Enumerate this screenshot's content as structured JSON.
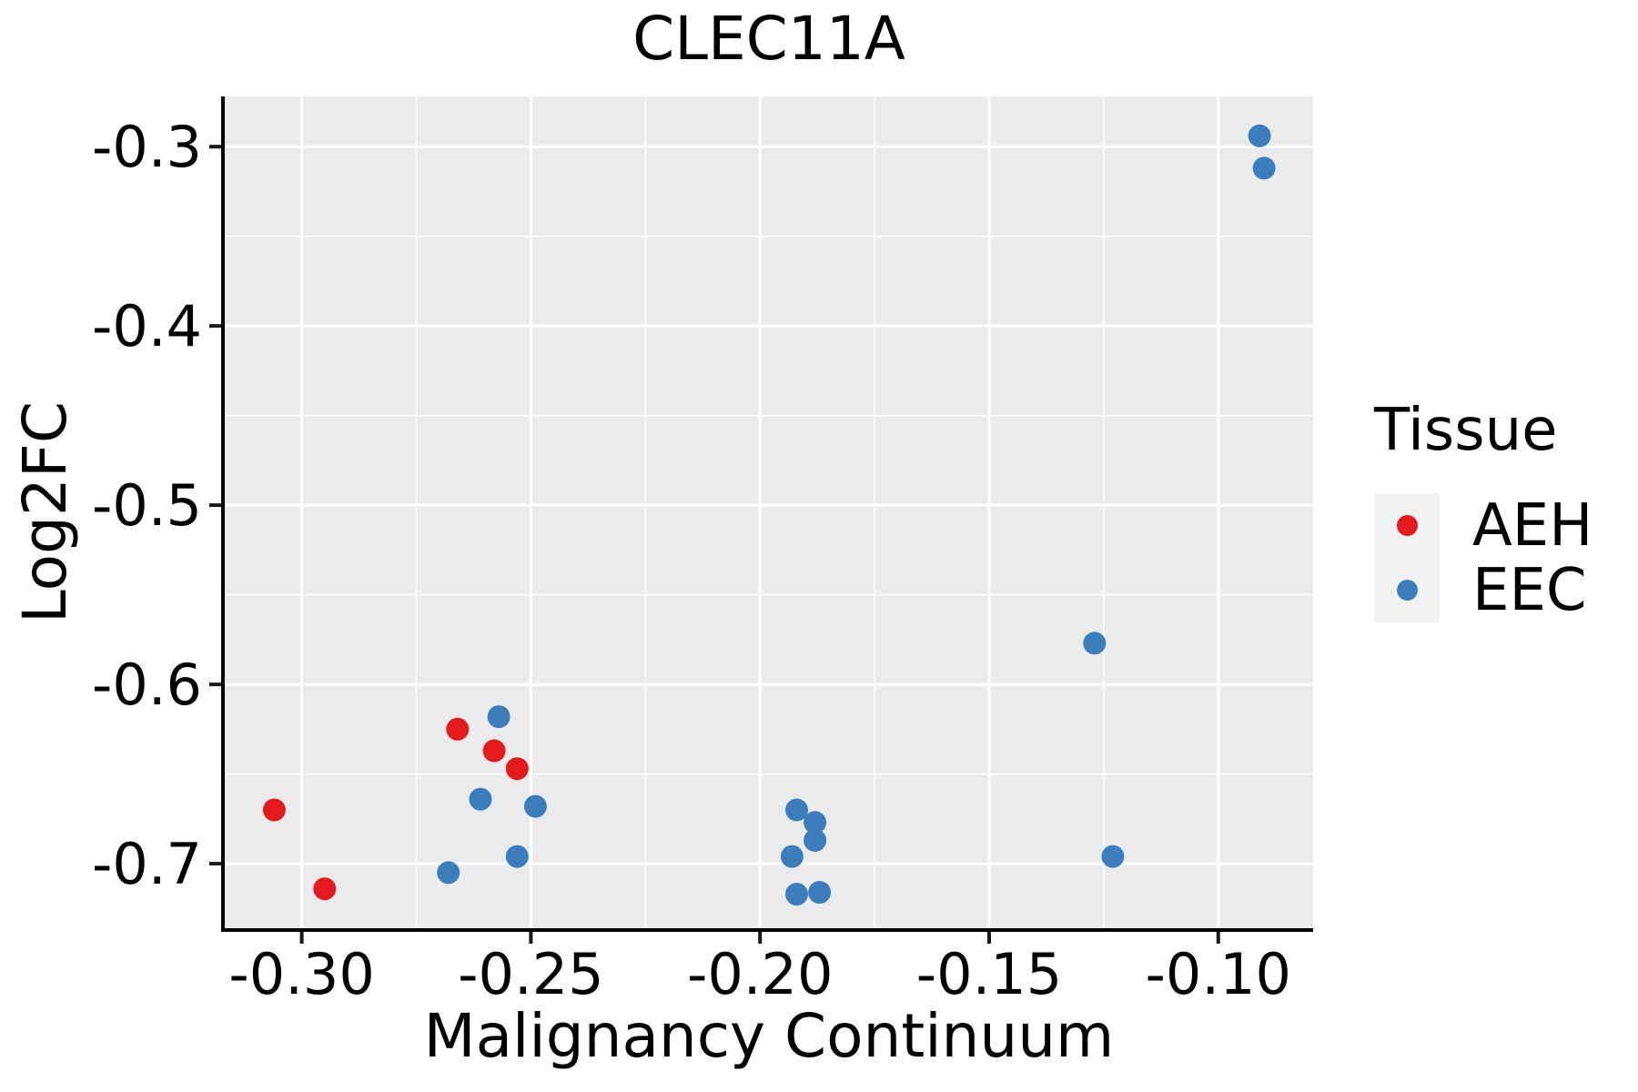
{
  "title": "CLEC11A",
  "x_axis": {
    "label": "Malignancy Continuum",
    "tick_labels": [
      "-0.30",
      "-0.25",
      "-0.20",
      "-0.15",
      "-0.10"
    ],
    "tick_values": [
      -0.3,
      -0.25,
      -0.2,
      -0.15,
      -0.1
    ]
  },
  "y_axis": {
    "label": "Log2FC",
    "tick_labels": [
      "-0.3",
      "-0.4",
      "-0.5",
      "-0.6",
      "-0.7"
    ],
    "tick_values": [
      -0.3,
      -0.4,
      -0.5,
      -0.6,
      -0.7
    ]
  },
  "legend": {
    "title": "Tissue",
    "items": [
      {
        "label": "AEH",
        "color": "#E41A1C"
      },
      {
        "label": "EEC",
        "color": "#3B7EBB"
      }
    ]
  },
  "style": {
    "panel_background": "#EBEBEB",
    "gridline_color": "#FFFFFF",
    "spine_color": "#000000",
    "tick_color": "#1a1a1a",
    "legend_key_background": "#F2F2F2",
    "text_color": "#000000"
  },
  "chart_data": {
    "type": "scatter",
    "title": "CLEC11A",
    "xlabel": "Malignancy Continuum",
    "ylabel": "Log2FC",
    "xlim": [
      -0.3168,
      -0.0793
    ],
    "ylim": [
      -0.736,
      -0.272
    ],
    "grid": true,
    "legend_position": "right",
    "legend_title": "Tissue",
    "x_major_gridlines": [
      -0.3,
      -0.25,
      -0.2,
      -0.15,
      -0.1
    ],
    "x_minor_gridlines": [
      -0.275,
      -0.225,
      -0.175,
      -0.125
    ],
    "y_major_gridlines": [
      -0.3,
      -0.4,
      -0.5,
      -0.6,
      -0.7
    ],
    "y_minor_gridlines": [
      -0.35,
      -0.45,
      -0.55,
      -0.65
    ],
    "marker_radius_px": 12.5,
    "series": [
      {
        "name": "AEH",
        "color": "#E41A1C",
        "points": [
          [
            -0.306,
            -0.67
          ],
          [
            -0.295,
            -0.714
          ],
          [
            -0.266,
            -0.625
          ],
          [
            -0.258,
            -0.637
          ],
          [
            -0.253,
            -0.647
          ]
        ]
      },
      {
        "name": "EEC",
        "color": "#3B7EBB",
        "points": [
          [
            -0.257,
            -0.618
          ],
          [
            -0.261,
            -0.664
          ],
          [
            -0.249,
            -0.668
          ],
          [
            -0.268,
            -0.705
          ],
          [
            -0.253,
            -0.696
          ],
          [
            -0.192,
            -0.67
          ],
          [
            -0.188,
            -0.677
          ],
          [
            -0.188,
            -0.687
          ],
          [
            -0.193,
            -0.696
          ],
          [
            -0.192,
            -0.717
          ],
          [
            -0.187,
            -0.716
          ],
          [
            -0.127,
            -0.577
          ],
          [
            -0.123,
            -0.696
          ],
          [
            -0.091,
            -0.294
          ],
          [
            -0.09,
            -0.312
          ]
        ]
      }
    ]
  }
}
